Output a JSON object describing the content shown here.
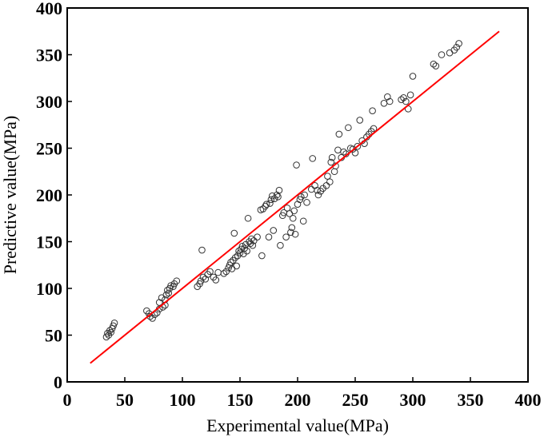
{
  "chart_data": {
    "type": "scatter",
    "title": "",
    "xlabel": "Experimental value(MPa)",
    "ylabel": "Predictive value(MPa)",
    "xlim": [
      0,
      400
    ],
    "ylim": [
      0,
      400
    ],
    "xticks": [
      0,
      50,
      100,
      150,
      200,
      250,
      300,
      350,
      400
    ],
    "yticks": [
      0,
      50,
      100,
      150,
      200,
      250,
      300,
      350,
      400
    ],
    "grid": false,
    "marker": "open-circle",
    "fit_line": {
      "x": [
        20,
        375
      ],
      "y": [
        20,
        375
      ],
      "color": "#ff0000"
    },
    "points": [
      [
        34,
        48
      ],
      [
        35,
        52
      ],
      [
        36,
        50
      ],
      [
        37,
        55
      ],
      [
        39,
        57
      ],
      [
        40,
        60
      ],
      [
        41,
        63
      ],
      [
        38,
        53
      ],
      [
        69,
        76
      ],
      [
        71,
        73
      ],
      [
        72,
        70
      ],
      [
        74,
        68
      ],
      [
        76,
        72
      ],
      [
        78,
        74
      ],
      [
        80,
        78
      ],
      [
        82,
        90
      ],
      [
        83,
        80
      ],
      [
        85,
        82
      ],
      [
        86,
        93
      ],
      [
        87,
        98
      ],
      [
        88,
        95
      ],
      [
        89,
        100
      ],
      [
        90,
        103
      ],
      [
        92,
        102
      ],
      [
        93,
        105
      ],
      [
        95,
        108
      ],
      [
        85,
        88
      ],
      [
        80,
        85
      ],
      [
        113,
        102
      ],
      [
        115,
        105
      ],
      [
        116,
        108
      ],
      [
        117,
        141
      ],
      [
        118,
        112
      ],
      [
        120,
        110
      ],
      [
        122,
        115
      ],
      [
        124,
        118
      ],
      [
        127,
        112
      ],
      [
        129,
        109
      ],
      [
        131,
        117
      ],
      [
        136,
        116
      ],
      [
        138,
        118
      ],
      [
        140,
        122
      ],
      [
        141,
        125
      ],
      [
        142,
        128
      ],
      [
        143,
        121
      ],
      [
        144,
        130
      ],
      [
        145,
        159
      ],
      [
        146,
        133
      ],
      [
        147,
        124
      ],
      [
        148,
        135
      ],
      [
        149,
        140
      ],
      [
        150,
        138
      ],
      [
        151,
        142
      ],
      [
        152,
        145
      ],
      [
        153,
        137
      ],
      [
        154,
        143
      ],
      [
        155,
        147
      ],
      [
        156,
        140
      ],
      [
        157,
        175
      ],
      [
        158,
        150
      ],
      [
        159,
        148
      ],
      [
        160,
        153
      ],
      [
        161,
        146
      ],
      [
        162,
        151
      ],
      [
        165,
        155
      ],
      [
        168,
        184
      ],
      [
        169,
        135
      ],
      [
        170,
        185
      ],
      [
        172,
        188
      ],
      [
        173,
        190
      ],
      [
        175,
        155
      ],
      [
        176,
        191
      ],
      [
        177,
        195
      ],
      [
        178,
        199
      ],
      [
        179,
        162
      ],
      [
        180,
        196
      ],
      [
        182,
        200
      ],
      [
        183,
        198
      ],
      [
        184,
        205
      ],
      [
        185,
        146
      ],
      [
        187,
        178
      ],
      [
        188,
        181
      ],
      [
        190,
        155
      ],
      [
        191,
        186
      ],
      [
        193,
        180
      ],
      [
        194,
        160
      ],
      [
        195,
        165
      ],
      [
        196,
        175
      ],
      [
        197,
        183
      ],
      [
        198,
        158
      ],
      [
        199,
        232
      ],
      [
        200,
        190
      ],
      [
        202,
        195
      ],
      [
        203,
        198
      ],
      [
        205,
        172
      ],
      [
        206,
        200
      ],
      [
        208,
        192
      ],
      [
        212,
        206
      ],
      [
        213,
        239
      ],
      [
        215,
        210
      ],
      [
        217,
        205
      ],
      [
        218,
        200
      ],
      [
        220,
        204
      ],
      [
        222,
        207
      ],
      [
        225,
        210
      ],
      [
        226,
        220
      ],
      [
        228,
        214
      ],
      [
        229,
        235
      ],
      [
        230,
        240
      ],
      [
        232,
        225
      ],
      [
        233,
        231
      ],
      [
        235,
        248
      ],
      [
        236,
        265
      ],
      [
        238,
        240
      ],
      [
        240,
        246
      ],
      [
        242,
        244
      ],
      [
        244,
        272
      ],
      [
        246,
        250
      ],
      [
        248,
        249
      ],
      [
        250,
        245
      ],
      [
        252,
        252
      ],
      [
        254,
        280
      ],
      [
        256,
        258
      ],
      [
        258,
        255
      ],
      [
        260,
        262
      ],
      [
        262,
        265
      ],
      [
        264,
        268
      ],
      [
        265,
        290
      ],
      [
        266,
        271
      ],
      [
        275,
        298
      ],
      [
        278,
        305
      ],
      [
        280,
        300
      ],
      [
        290,
        302
      ],
      [
        292,
        304
      ],
      [
        294,
        300
      ],
      [
        296,
        292
      ],
      [
        298,
        307
      ],
      [
        300,
        327
      ],
      [
        318,
        340
      ],
      [
        320,
        338
      ],
      [
        325,
        350
      ],
      [
        332,
        352
      ],
      [
        336,
        355
      ],
      [
        338,
        358
      ],
      [
        340,
        362
      ]
    ]
  }
}
